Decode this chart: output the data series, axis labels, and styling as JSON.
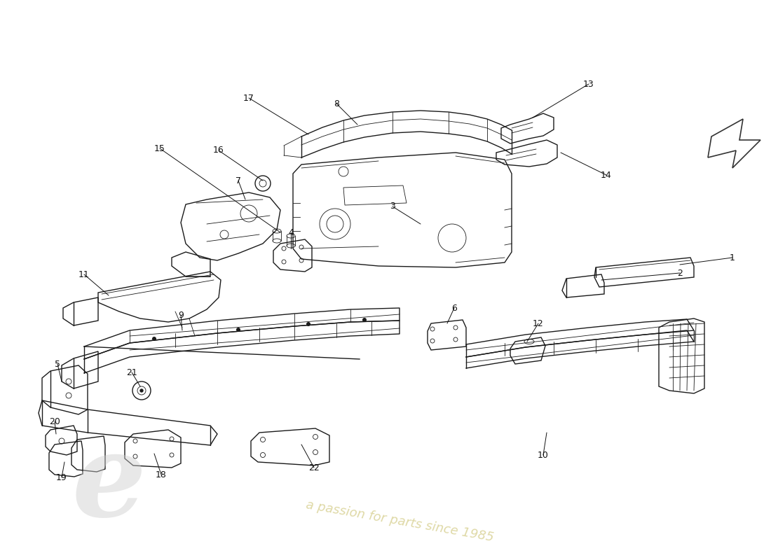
{
  "background_color": "#ffffff",
  "line_color": "#1a1a1a",
  "lw": 1.0,
  "tlw": 0.6,
  "label_fs": 9,
  "fig_w": 11.0,
  "fig_h": 8.0,
  "watermark_text": "a passion for parts since 1985",
  "watermark_color": "#d4cc88",
  "wm_e_color": "#cccccc"
}
